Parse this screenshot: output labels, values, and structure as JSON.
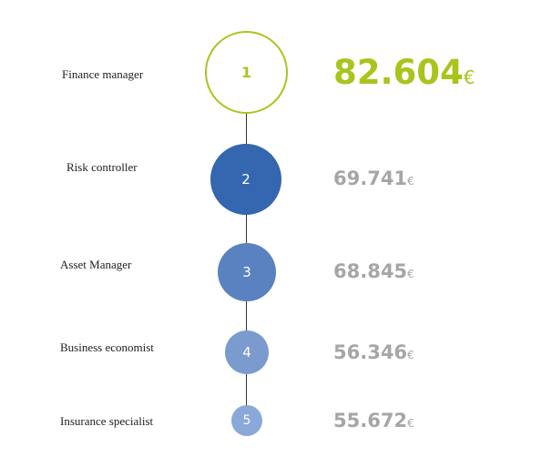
{
  "colors": {
    "accent": "#a8c51d",
    "rank_2": "#3566b0",
    "rank_3": "#5a82c0",
    "rank_4": "#7b9bcf",
    "rank_5": "#8aa8d8",
    "value_gray": "#a6a6a6"
  },
  "items": [
    {
      "rank": "1",
      "job": "Finance manager",
      "salary": "82.604",
      "currency": "€"
    },
    {
      "rank": "2",
      "job": "Risk controller",
      "salary": "69.741",
      "currency": "€"
    },
    {
      "rank": "3",
      "job": "Asset Manager",
      "salary": "68.845",
      "currency": "€"
    },
    {
      "rank": "4",
      "job": "Business economist",
      "salary": "56.346",
      "currency": "€"
    },
    {
      "rank": "5",
      "job": "Insurance specialist",
      "salary": "55.672",
      "currency": "€"
    }
  ]
}
